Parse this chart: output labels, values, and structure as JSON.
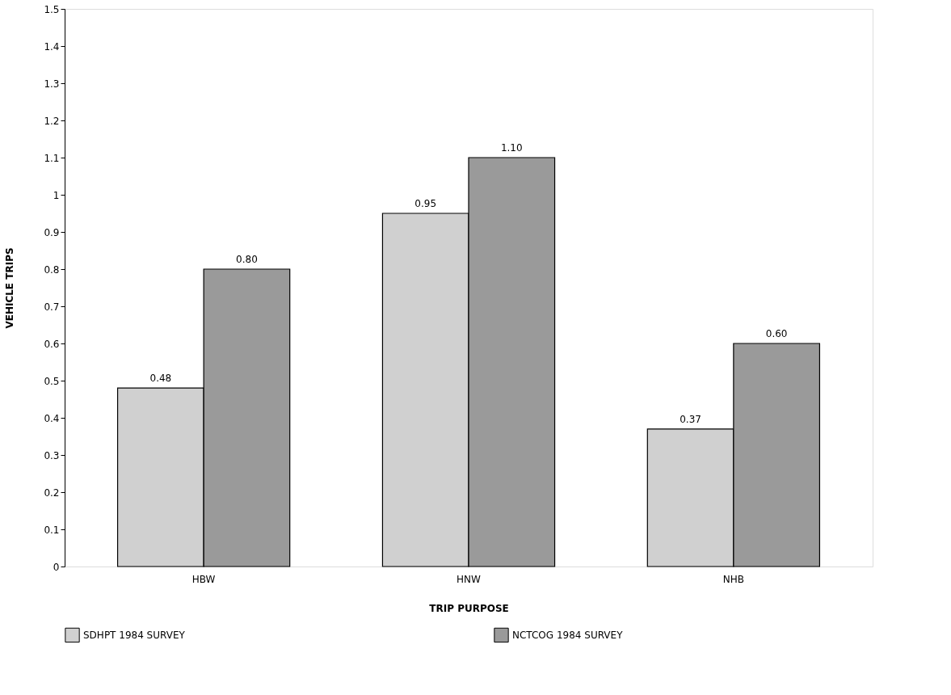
{
  "chart_data": {
    "type": "bar",
    "xlabel": "TRIP PURPOSE",
    "ylabel": "VEHICLE TRIPS",
    "categories": [
      "HBW",
      "HNW",
      "NHB"
    ],
    "series": [
      {
        "name": "SDHPT 1984 SURVEY",
        "color": "#d0d0d0",
        "values": [
          0.48,
          0.95,
          0.37
        ],
        "value_labels": [
          "0.48",
          "0.95",
          "0.37"
        ]
      },
      {
        "name": "NCTCOG 1984 SURVEY",
        "color": "#9a9a9a",
        "values": [
          0.8,
          1.1,
          0.6
        ],
        "value_labels": [
          "0.80",
          "1.10",
          "0.60"
        ]
      }
    ],
    "ylim": [
      0,
      1.5
    ],
    "yticks": [
      0,
      0.1,
      0.2,
      0.3,
      0.4,
      0.5,
      0.6,
      0.7,
      0.8,
      0.9,
      1,
      1.1,
      1.2,
      1.3,
      1.4,
      1.5
    ],
    "grid": false,
    "legend": "bottom"
  }
}
